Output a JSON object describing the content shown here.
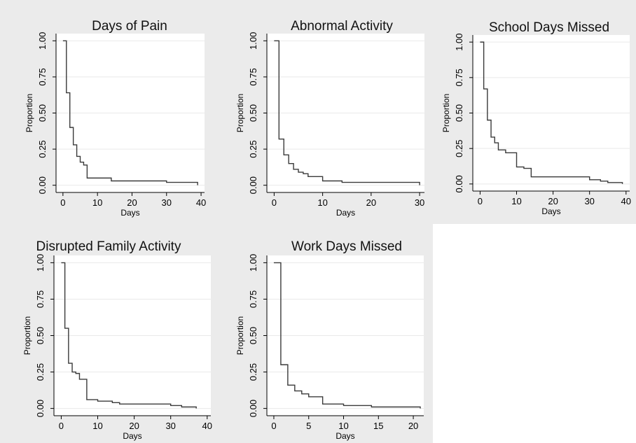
{
  "chart_data": [
    {
      "type": "line",
      "title": "Days of Pain",
      "xlabel": "Days",
      "ylabel": "Proportion",
      "xlim": [
        -2,
        41
      ],
      "ylim": [
        -0.05,
        1.05
      ],
      "xticks": [
        0,
        10,
        20,
        30,
        40
      ],
      "xtick_labels": [
        "0",
        "10",
        "20",
        "30",
        "40"
      ],
      "yticks": [
        0,
        0.25,
        0.5,
        0.75,
        1
      ],
      "ytick_labels": [
        "0.00",
        "0.25",
        "0.50",
        "0.75",
        "1.00"
      ],
      "grid": true,
      "step": true,
      "x": [
        0,
        1,
        2,
        3,
        4,
        5,
        6,
        7,
        14,
        30,
        39
      ],
      "y": [
        1.0,
        0.64,
        0.4,
        0.28,
        0.2,
        0.16,
        0.14,
        0.05,
        0.03,
        0.02,
        0.0
      ]
    },
    {
      "type": "line",
      "title": "Abnormal Activity",
      "xlabel": "Days",
      "ylabel": "Proportion",
      "xlim": [
        -1.5,
        31
      ],
      "ylim": [
        -0.05,
        1.05
      ],
      "xticks": [
        0,
        10,
        20,
        30
      ],
      "xtick_labels": [
        "0",
        "10",
        "20",
        "30"
      ],
      "yticks": [
        0,
        0.25,
        0.5,
        0.75,
        1
      ],
      "ytick_labels": [
        "0.00",
        "0.25",
        "0.50",
        "0.75",
        "1.00"
      ],
      "grid": true,
      "step": true,
      "x": [
        0,
        1,
        2,
        3,
        4,
        5,
        6,
        7,
        10,
        14,
        30
      ],
      "y": [
        1.0,
        0.32,
        0.21,
        0.15,
        0.11,
        0.09,
        0.08,
        0.06,
        0.03,
        0.02,
        0.0
      ]
    },
    {
      "type": "line",
      "title": "School Days Missed",
      "xlabel": "Days",
      "ylabel": "Proportion",
      "xlim": [
        -2,
        41
      ],
      "ylim": [
        -0.05,
        1.05
      ],
      "xticks": [
        0,
        10,
        20,
        30,
        40
      ],
      "xtick_labels": [
        "0",
        "10",
        "20",
        "30",
        "40"
      ],
      "yticks": [
        0,
        0.25,
        0.5,
        0.75,
        1
      ],
      "ytick_labels": [
        "0.00",
        "0.25",
        "0.50",
        "0.75",
        "1.00"
      ],
      "grid": true,
      "step": true,
      "x": [
        0,
        1,
        2,
        3,
        4,
        5,
        7,
        10,
        12,
        14,
        30,
        33,
        35,
        39
      ],
      "y": [
        1.0,
        0.67,
        0.45,
        0.33,
        0.29,
        0.24,
        0.22,
        0.12,
        0.11,
        0.05,
        0.03,
        0.02,
        0.01,
        0.0
      ]
    },
    {
      "type": "line",
      "title": "Disrupted Family Activity",
      "xlabel": "Days",
      "ylabel": "Proportion",
      "xlim": [
        -2,
        41
      ],
      "ylim": [
        -0.05,
        1.05
      ],
      "xticks": [
        0,
        10,
        20,
        30,
        40
      ],
      "xtick_labels": [
        "0",
        "10",
        "20",
        "30",
        "40"
      ],
      "yticks": [
        0,
        0.25,
        0.5,
        0.75,
        1
      ],
      "ytick_labels": [
        "0.00",
        "0.25",
        "0.50",
        "0.75",
        "1.00"
      ],
      "grid": true,
      "step": true,
      "x": [
        0,
        1,
        2,
        3,
        4,
        5,
        7,
        10,
        14,
        16,
        30,
        33,
        37
      ],
      "y": [
        1.0,
        0.55,
        0.31,
        0.25,
        0.24,
        0.2,
        0.06,
        0.05,
        0.04,
        0.03,
        0.02,
        0.01,
        0.0
      ]
    },
    {
      "type": "line",
      "title": "Work Days Missed",
      "xlabel": "Days",
      "ylabel": "Proportion",
      "xlim": [
        -1,
        21.5
      ],
      "ylim": [
        -0.05,
        1.05
      ],
      "xticks": [
        0,
        5,
        10,
        15,
        20
      ],
      "xtick_labels": [
        "0",
        "5",
        "10",
        "15",
        "20"
      ],
      "yticks": [
        0,
        0.25,
        0.5,
        0.75,
        1
      ],
      "ytick_labels": [
        "0.00",
        "0.25",
        "0.50",
        "0.75",
        "1.00"
      ],
      "grid": true,
      "step": true,
      "x": [
        0,
        1,
        2,
        3,
        4,
        5,
        7,
        10,
        14,
        21
      ],
      "y": [
        1.0,
        0.3,
        0.16,
        0.12,
        0.1,
        0.08,
        0.03,
        0.02,
        0.01,
        0.0
      ]
    }
  ],
  "colors": {
    "panel_background": "#ebebeb",
    "plot_background": "#ffffff",
    "gridline": "#e9e9e9",
    "curve": "#3a3a3a",
    "text": "#000000"
  }
}
